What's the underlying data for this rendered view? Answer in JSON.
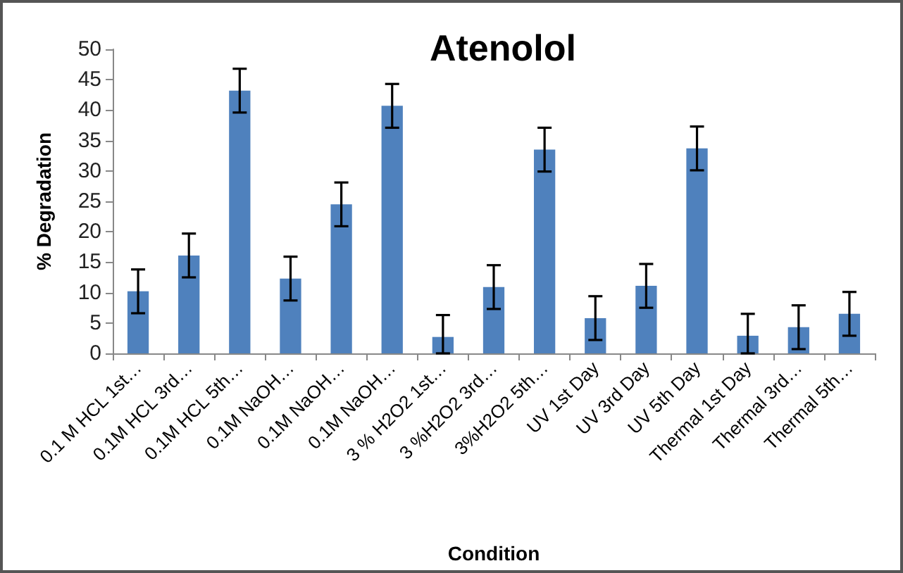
{
  "chart_data": {
    "type": "bar",
    "title": "Atenolol",
    "xlabel": "Condition",
    "ylabel": "% Degradation",
    "categories": [
      "0.1 M HCL 1st…",
      "0.1M HCL 3rd…",
      "0.1M HCL 5th…",
      "0.1M NaOH…",
      "0.1M NaOH…",
      "0.1M NaOH…",
      "3 % H2O2 1st…",
      "3 %H2O2 3rd…",
      "3%H2O2 5th…",
      "UV 1st Day",
      "UV 3rd Day",
      "UV 5th Day",
      "Thermal 1st Day",
      "Thermal 3rd…",
      "Thermal 5th…"
    ],
    "values": [
      10.2,
      16.1,
      43.2,
      12.3,
      24.5,
      40.7,
      2.7,
      10.9,
      33.5,
      5.8,
      11.1,
      33.7,
      2.9,
      4.3,
      6.5
    ],
    "errors": [
      3.6,
      3.6,
      3.6,
      3.6,
      3.6,
      3.6,
      [
        0,
        6.3
      ],
      3.6,
      3.6,
      3.6,
      3.6,
      3.6,
      [
        0,
        6.5
      ],
      3.6,
      3.6
    ],
    "color": "#4f81bd",
    "ylim": [
      0,
      50
    ],
    "yticks": [
      0,
      5,
      10,
      15,
      20,
      25,
      30,
      35,
      40,
      45,
      50
    ],
    "grid": false
  }
}
